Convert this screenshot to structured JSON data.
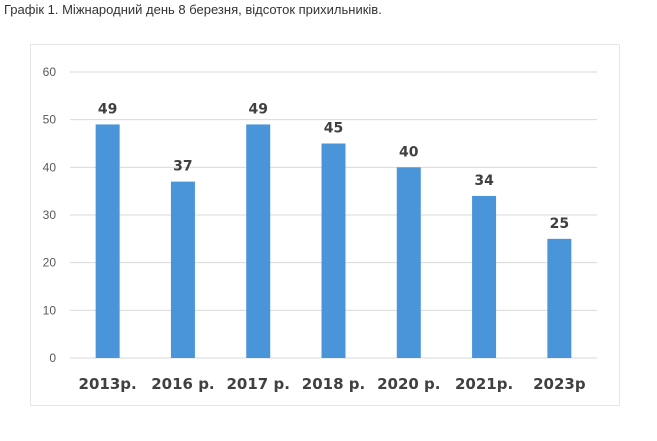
{
  "caption": "Графік 1. Міжнародний день 8 березня, відсоток прихильників.",
  "colors": {
    "bar": "#4A95DA",
    "grid": "#D9D9D9",
    "axis_text": "#595959",
    "label_text": "#404040"
  },
  "chart_data": {
    "type": "bar",
    "categories": [
      "2013р.",
      "2016 р.",
      "2017 р.",
      "2018 р.",
      "2020 р.",
      "2021р.",
      "2023р"
    ],
    "values": [
      49,
      37,
      49,
      45,
      40,
      34,
      25
    ],
    "data_labels": [
      "49",
      "37",
      "49",
      "45",
      "40",
      "34",
      "25"
    ],
    "yticks": [
      0,
      10,
      20,
      30,
      40,
      50,
      60
    ],
    "ylim": [
      0,
      60
    ],
    "grid": true,
    "legend": false
  }
}
